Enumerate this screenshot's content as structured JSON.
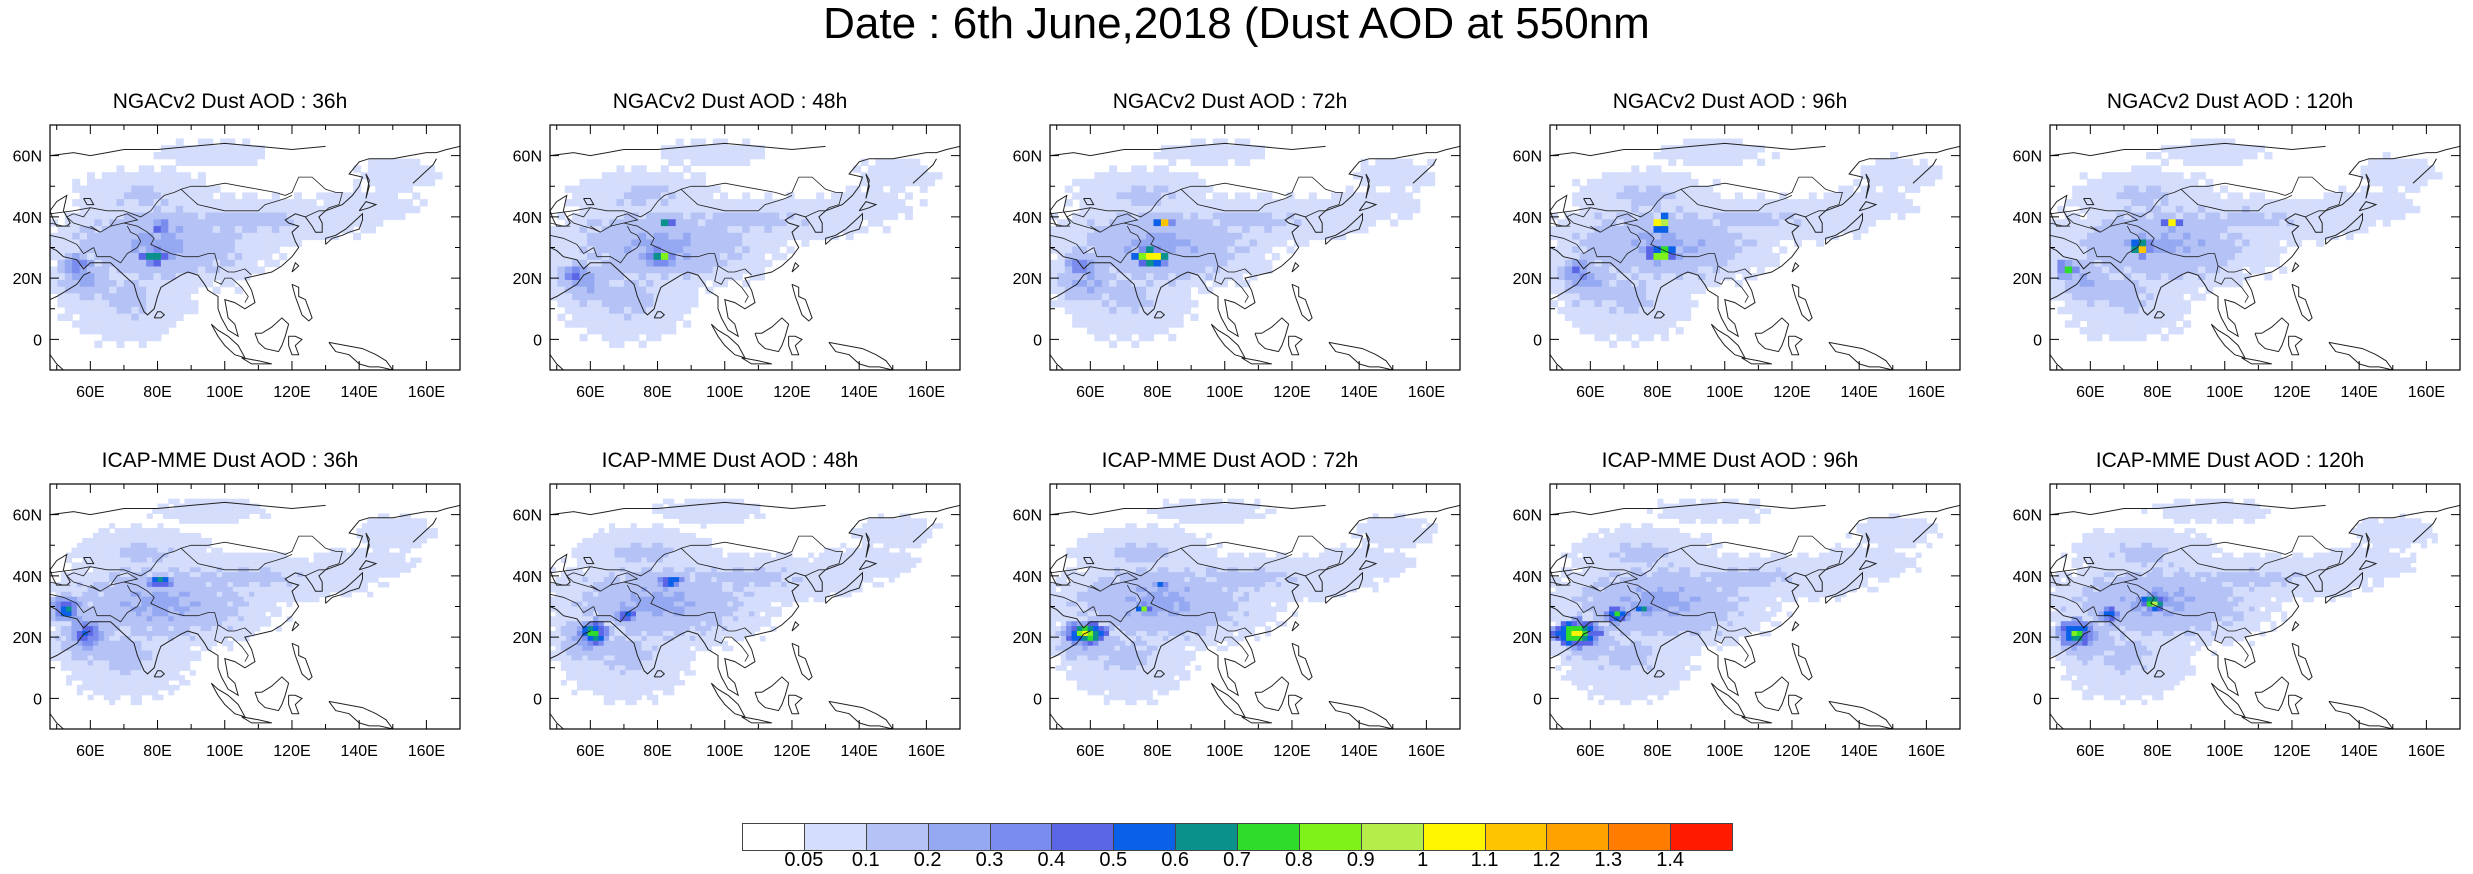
{
  "title": "Date : 6th June,2018 (Dust AOD at 550nm",
  "panels": [
    {
      "title": "NGACv2 Dust AOD : 36h",
      "hotspot_max_level": 9,
      "model": "NGACv2",
      "lead": "36h"
    },
    {
      "title": "NGACv2 Dust AOD : 48h",
      "hotspot_max_level": 9,
      "model": "NGACv2",
      "lead": "48h"
    },
    {
      "title": "NGACv2 Dust AOD : 72h",
      "hotspot_max_level": 13,
      "model": "NGACv2",
      "lead": "72h"
    },
    {
      "title": "NGACv2 Dust AOD : 96h",
      "hotspot_max_level": 14,
      "model": "NGACv2",
      "lead": "96h"
    },
    {
      "title": "NGACv2 Dust AOD : 120h",
      "hotspot_max_level": 14,
      "model": "NGACv2",
      "lead": "120h"
    },
    {
      "title": "ICAP-MME Dust AOD : 36h",
      "hotspot_max_level": 9,
      "model": "ICAP-MME",
      "lead": "36h"
    },
    {
      "title": "ICAP-MME Dust AOD : 48h",
      "hotspot_max_level": 9,
      "model": "ICAP-MME",
      "lead": "48h"
    },
    {
      "title": "ICAP-MME Dust AOD : 72h",
      "hotspot_max_level": 11,
      "model": "ICAP-MME",
      "lead": "72h"
    },
    {
      "title": "ICAP-MME Dust AOD : 96h",
      "hotspot_max_level": 11,
      "model": "ICAP-MME",
      "lead": "96h"
    },
    {
      "title": "ICAP-MME Dust AOD : 120h",
      "hotspot_max_level": 11,
      "model": "ICAP-MME",
      "lead": "120h"
    }
  ],
  "map_axes": {
    "lon_range": [
      48,
      170
    ],
    "lat_range": [
      -10,
      70
    ],
    "lon_ticks": [
      60,
      80,
      100,
      120,
      140,
      160
    ],
    "lon_tick_labels": [
      "60E",
      "80E",
      "100E",
      "120E",
      "140E",
      "160E"
    ],
    "lat_ticks": [
      0,
      20,
      40,
      60
    ],
    "lat_tick_labels": [
      "0",
      "20N",
      "40N",
      "60N"
    ]
  },
  "colorbar": {
    "colors": [
      "#ffffff",
      "#d4ddfb",
      "#b4c2f6",
      "#95a8f2",
      "#7a8cee",
      "#5b66e6",
      "#0a61e8",
      "#0b918c",
      "#2fdc2b",
      "#7ff21a",
      "#b5ee4a",
      "#fff500",
      "#ffc400",
      "#ffa200",
      "#ff7c00",
      "#ff1a00"
    ],
    "labels": [
      "0.05",
      "0.1",
      "0.2",
      "0.3",
      "0.4",
      "0.5",
      "0.6",
      "0.7",
      "0.8",
      "0.9",
      "1",
      "1.1",
      "1.2",
      "1.3",
      "1.4"
    ]
  }
}
